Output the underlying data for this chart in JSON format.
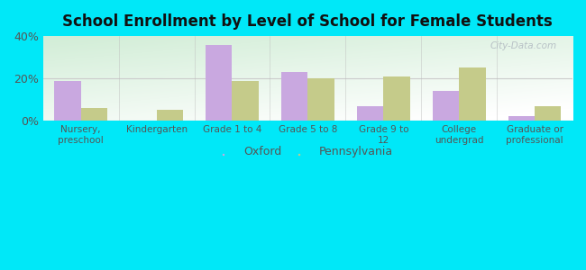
{
  "title": "School Enrollment by Level of School for Female Students",
  "categories": [
    "Nursery,\npreschool",
    "Kindergarten",
    "Grade 1 to 4",
    "Grade 5 to 8",
    "Grade 9 to\n12",
    "College\nundergrad",
    "Graduate or\nprofessional"
  ],
  "oxford_values": [
    19,
    0,
    36,
    23,
    7,
    14,
    2
  ],
  "pennsylvania_values": [
    6,
    5,
    19,
    20,
    21,
    25,
    7
  ],
  "oxford_color": "#c9a8e0",
  "pennsylvania_color": "#c5cb8a",
  "background_outer": "#00e8f8",
  "ylim": [
    0,
    40
  ],
  "yticks": [
    0,
    20,
    40
  ],
  "ytick_labels": [
    "0%",
    "20%",
    "40%"
  ],
  "bar_width": 0.35,
  "legend_labels": [
    "Oxford",
    "Pennsylvania"
  ],
  "watermark": "City-Data.com",
  "separator_color": "#cccccc",
  "tick_label_color": "#555555",
  "grid_color": "#cccccc"
}
